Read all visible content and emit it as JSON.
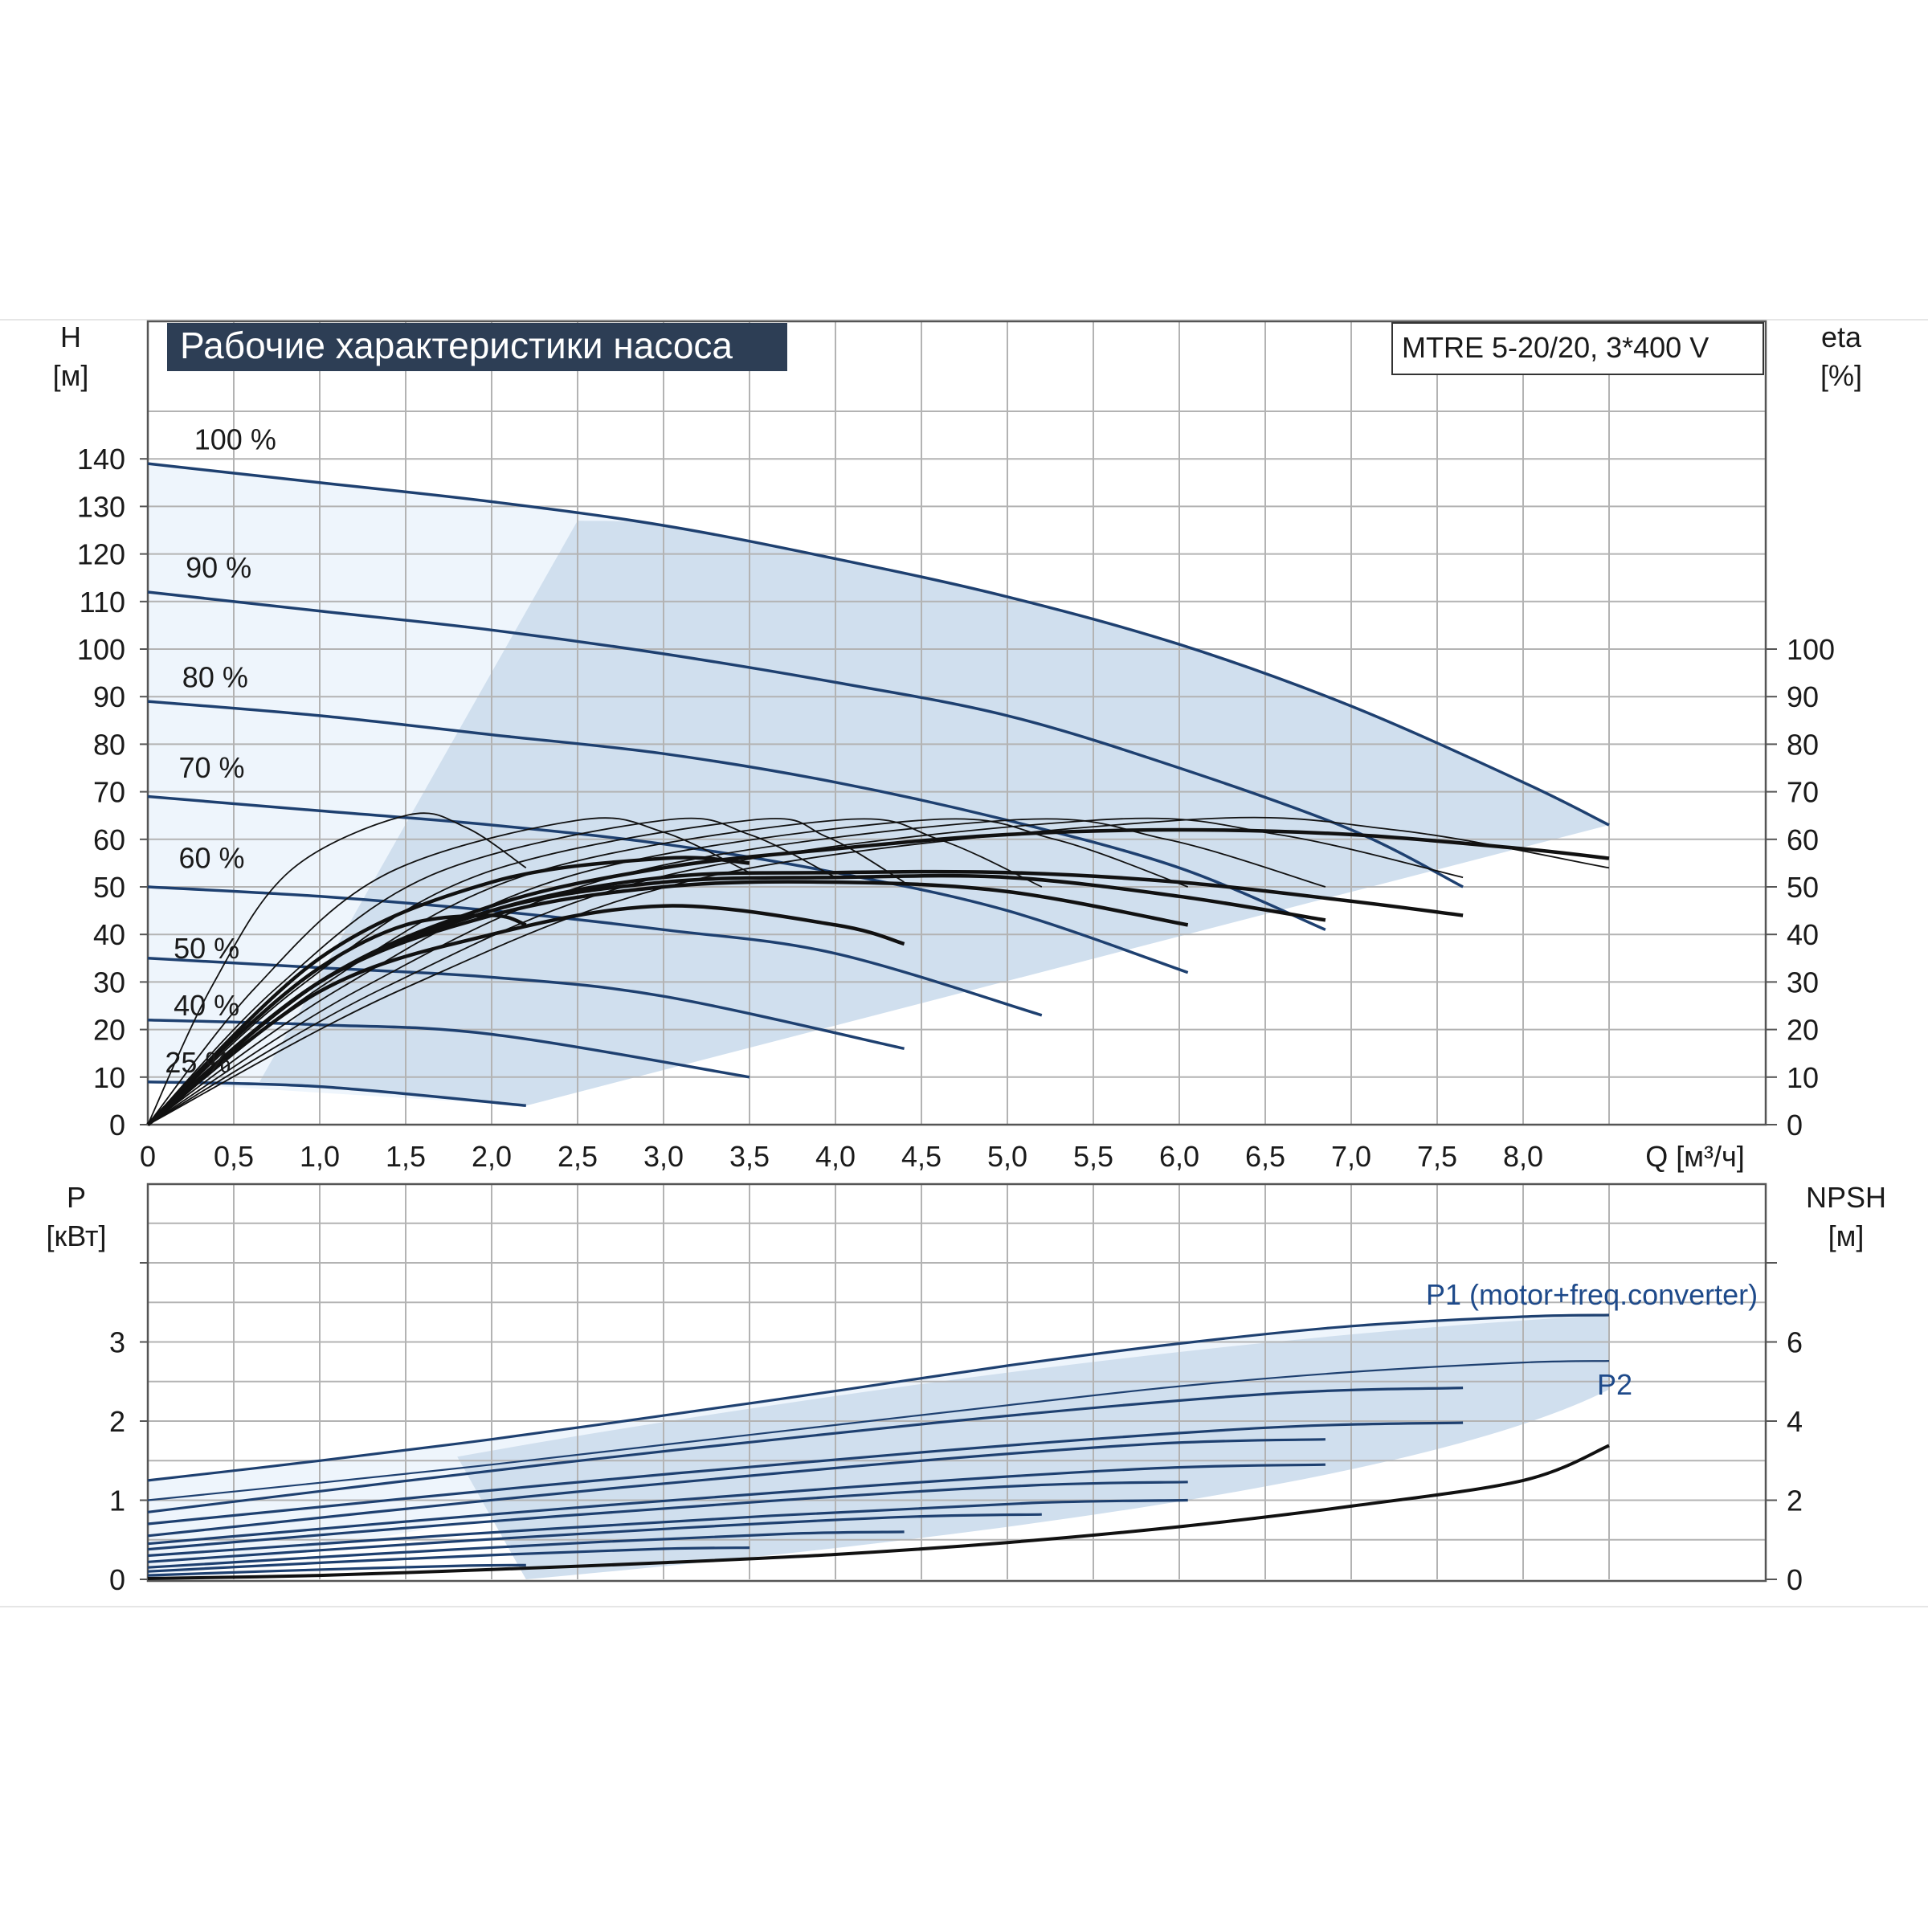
{
  "title": "Рабочие характеристики насоса",
  "model": "MTRE 5-20/20, 3*400 V",
  "top_chart": {
    "y_label": "H",
    "y_unit": "[м]",
    "y2_label": "eta",
    "y2_unit": "[%]",
    "x_label": "Q [м³/ч]",
    "y_ticks": [
      "0",
      "10",
      "20",
      "30",
      "40",
      "50",
      "60",
      "70",
      "80",
      "90",
      "100",
      "110",
      "120",
      "130",
      "140"
    ],
    "y2_ticks": [
      "0",
      "10",
      "20",
      "30",
      "40",
      "50",
      "60",
      "70",
      "80",
      "90",
      "100"
    ],
    "x_ticks": [
      "0",
      "0,5",
      "1,0",
      "1,5",
      "2,0",
      "2,5",
      "3,0",
      "3,5",
      "4,0",
      "4,5",
      "5,0",
      "5,5",
      "6,0",
      "6,5",
      "7,0",
      "7,5",
      "8,0"
    ],
    "speed_labels": [
      "100 %",
      "90 %",
      "80 %",
      "70 %",
      "60 %",
      "50 %",
      "40 %",
      "25 %"
    ]
  },
  "bottom_chart": {
    "y_label": "P",
    "y_unit": "[кВт]",
    "y2_label": "NPSH",
    "y2_unit": "[м]",
    "y_ticks": [
      "0",
      "1",
      "2",
      "3"
    ],
    "y2_ticks": [
      "0",
      "2",
      "4",
      "6"
    ],
    "p1_label": "P1 (motor+freq.converter)",
    "p2_label": "P2"
  },
  "chart_data": [
    {
      "type": "line",
      "title": "Рабочие характеристики насоса",
      "xlabel": "Q [м³/ч]",
      "ylabel": "H [м]",
      "y2label": "eta [%]",
      "xlim": [
        0,
        8.5
      ],
      "ylim": [
        0,
        140
      ],
      "y2lim": [
        0,
        100
      ],
      "grid": true,
      "head_curves": [
        {
          "name": "100 %",
          "x": [
            0,
            1.0,
            2.0,
            3.0,
            4.0,
            5.0,
            6.0,
            7.0,
            8.0,
            8.5
          ],
          "y": [
            139,
            135,
            131,
            126,
            119,
            111,
            101,
            88,
            72,
            63
          ]
        },
        {
          "name": "90 %",
          "x": [
            0,
            1.0,
            2.0,
            3.0,
            4.0,
            5.0,
            6.0,
            7.0,
            7.65
          ],
          "y": [
            112,
            108,
            104,
            99,
            93,
            86,
            75,
            62,
            50
          ]
        },
        {
          "name": "80 %",
          "x": [
            0,
            1.0,
            2.0,
            3.0,
            4.0,
            5.0,
            6.0,
            6.85
          ],
          "y": [
            89,
            86,
            82,
            78,
            72,
            64,
            54,
            41
          ]
        },
        {
          "name": "70 %",
          "x": [
            0,
            1.0,
            2.0,
            3.0,
            4.0,
            5.0,
            6.05
          ],
          "y": [
            69,
            66,
            63,
            59,
            53,
            45,
            32
          ]
        },
        {
          "name": "60 %",
          "x": [
            0,
            1.0,
            2.0,
            3.0,
            4.0,
            5.2
          ],
          "y": [
            50,
            48,
            45,
            41,
            36,
            23
          ]
        },
        {
          "name": "50 %",
          "x": [
            0,
            1.0,
            2.0,
            3.0,
            4.4
          ],
          "y": [
            35,
            33,
            31,
            27,
            16
          ]
        },
        {
          "name": "40 %",
          "x": [
            0,
            1.0,
            2.0,
            3.5
          ],
          "y": [
            22,
            21,
            19,
            10
          ]
        },
        {
          "name": "25 %",
          "x": [
            0,
            1.0,
            2.2
          ],
          "y": [
            9,
            8,
            4
          ]
        }
      ],
      "eta_curves": [
        {
          "x": [
            0,
            0.5,
            1.0,
            1.5,
            2.0,
            2.2
          ],
          "y": [
            0,
            18,
            33,
            42,
            44,
            42
          ]
        },
        {
          "x": [
            0,
            1.0,
            2.0,
            3.0,
            3.5
          ],
          "y": [
            0,
            35,
            51,
            56,
            55
          ]
        },
        {
          "x": [
            0,
            1.0,
            2.0,
            3.0,
            4.0,
            5.0,
            6.0,
            7.0,
            8.0,
            8.5
          ],
          "y": [
            0,
            30,
            46,
            54,
            58,
            61,
            62,
            61,
            58,
            56
          ]
        }
      ]
    },
    {
      "type": "line",
      "ylabel": "P [кВт]",
      "y2label": "NPSH [м]",
      "xlim": [
        0,
        8.5
      ],
      "ylim": [
        0,
        4
      ],
      "y2lim": [
        0,
        8
      ],
      "grid": true,
      "series": [
        {
          "name": "P1 (motor+freq.converter)",
          "x": [
            0,
            1.0,
            2.0,
            3.0,
            4.0,
            5.0,
            6.0,
            7.0,
            8.0,
            8.5
          ],
          "y": [
            1.25,
            1.5,
            1.77,
            2.07,
            2.38,
            2.7,
            2.98,
            3.2,
            3.32,
            3.34
          ]
        },
        {
          "name": "P2",
          "x": [
            0,
            1.0,
            2.0,
            3.0,
            4.0,
            5.0,
            6.0,
            7.0,
            8.0,
            8.5
          ],
          "y": [
            1.0,
            1.22,
            1.45,
            1.7,
            1.95,
            2.2,
            2.44,
            2.62,
            2.74,
            2.76
          ]
        },
        {
          "name": "NPSH",
          "x": [
            0,
            1.0,
            2.0,
            3.0,
            4.0,
            5.0,
            6.0,
            7.0,
            8.0,
            8.5
          ],
          "y": [
            0.02,
            0.1,
            0.25,
            0.42,
            0.63,
            0.93,
            1.33,
            1.85,
            2.5,
            3.38
          ]
        }
      ]
    }
  ]
}
